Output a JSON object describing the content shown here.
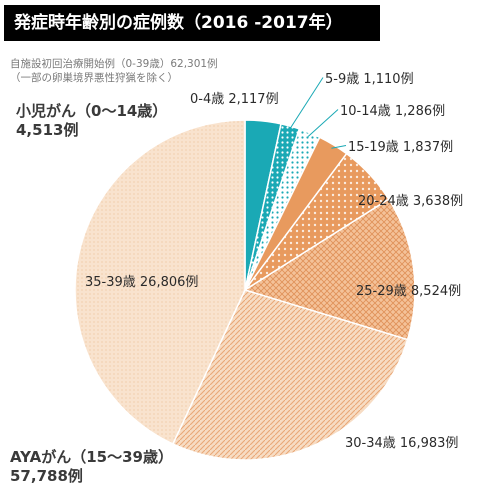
{
  "title": "発症時年齢別の症例数（2016 -2017年）",
  "notes": {
    "line1": "自施設初回治療開始例（0-39歳）62,301例",
    "line2": "（一部の卵巣境界悪性狩猟を除く）"
  },
  "groups": {
    "child": {
      "name": "小児がん（0〜14歳）",
      "count": "4,513例"
    },
    "aya": {
      "name": "AYAがん（15〜39歳）",
      "count": "57,788例"
    }
  },
  "chart_data": {
    "type": "pie",
    "title": "発症時年齢別の症例数（2016 -2017年）",
    "total": 62301,
    "slices": [
      {
        "label": "0-4歳 2,117例",
        "category": "0-4歳",
        "value": 2117,
        "color": "#1aa9b5",
        "pattern": "solid"
      },
      {
        "label": "5-9歳 1,110例",
        "category": "5-9歳",
        "value": 1110,
        "color": "#1aa9b5",
        "pattern": "dots"
      },
      {
        "label": "10-14歳 1,286例",
        "category": "10-14歳",
        "value": 1286,
        "color": "#1aa9b5",
        "pattern": "dots-light"
      },
      {
        "label": "15-19歳 1,837例",
        "category": "15-19歳",
        "value": 1837,
        "color": "#e89a5e",
        "pattern": "solid"
      },
      {
        "label": "20-24歳 3,638例",
        "category": "20-24歳",
        "value": 3638,
        "color": "#e89a5e",
        "pattern": "dots"
      },
      {
        "label": "25-29歳 8,524例",
        "category": "25-29歳",
        "value": 8524,
        "color": "#f0b68a",
        "pattern": "crosshatch"
      },
      {
        "label": "30-34歳 16,983例",
        "category": "30-34歳",
        "value": 16983,
        "color": "#f3c9a4",
        "pattern": "diagonal"
      },
      {
        "label": "35-39歳 26,806例",
        "category": "35-39歳",
        "value": 26806,
        "color": "#f7dcc3",
        "pattern": "fine"
      }
    ]
  }
}
